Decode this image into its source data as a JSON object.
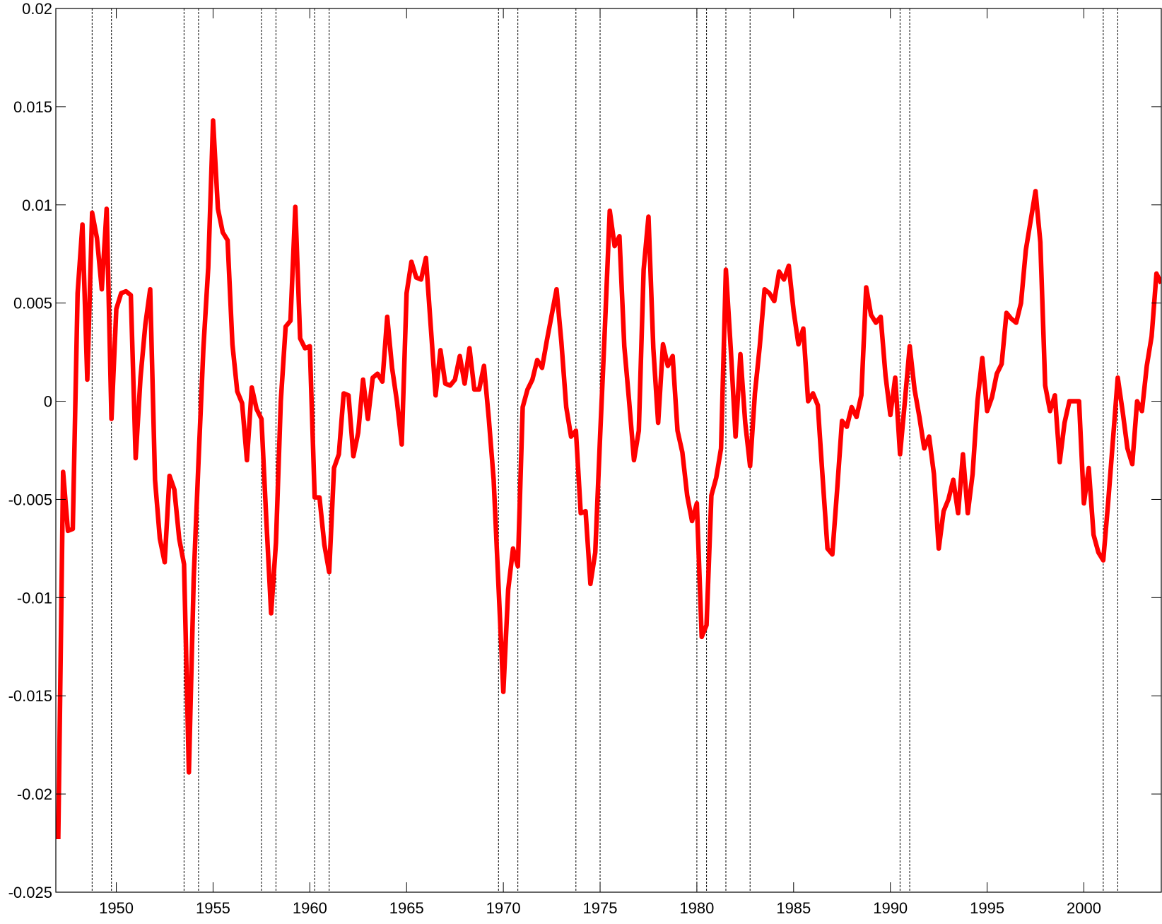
{
  "chart_data": {
    "type": "line",
    "color": "#ff0000",
    "xlim": [
      1946.875,
      2004
    ],
    "ylim": [
      -0.025,
      0.02
    ],
    "xticks": [
      1950,
      1955,
      1960,
      1965,
      1970,
      1975,
      1980,
      1985,
      1990,
      1995,
      2000
    ],
    "yticks": [
      -0.025,
      -0.02,
      -0.015,
      -0.01,
      -0.005,
      0,
      0.005,
      0.01,
      0.015,
      0.02
    ],
    "vlines": [
      1948.75,
      1949.75,
      1953.5,
      1954.25,
      1957.5,
      1958.25,
      1960.25,
      1961,
      1969.75,
      1970.75,
      1973.75,
      1975,
      1980,
      1980.5,
      1981.5,
      1982.75,
      1990.5,
      1991,
      2001,
      2001.75
    ],
    "x": [
      1947,
      1947.25,
      1947.5,
      1947.75,
      1948,
      1948.25,
      1948.5,
      1948.75,
      1949,
      1949.25,
      1949.5,
      1949.75,
      1950,
      1950.25,
      1950.5,
      1950.75,
      1951,
      1951.25,
      1951.5,
      1951.75,
      1952,
      1952.25,
      1952.5,
      1952.75,
      1953,
      1953.25,
      1953.5,
      1953.75,
      1954,
      1954.25,
      1954.5,
      1954.75,
      1955,
      1955.25,
      1955.5,
      1955.75,
      1956,
      1956.25,
      1956.5,
      1956.75,
      1957,
      1957.25,
      1957.5,
      1957.75,
      1958,
      1958.25,
      1958.5,
      1958.75,
      1959,
      1959.25,
      1959.5,
      1959.75,
      1960,
      1960.25,
      1960.5,
      1960.75,
      1961,
      1961.25,
      1961.5,
      1961.75,
      1962,
      1962.25,
      1962.5,
      1962.75,
      1963,
      1963.25,
      1963.5,
      1963.75,
      1964,
      1964.25,
      1964.5,
      1964.75,
      1965,
      1965.25,
      1965.5,
      1965.75,
      1966,
      1966.25,
      1966.5,
      1966.75,
      1967,
      1967.25,
      1967.5,
      1967.75,
      1968,
      1968.25,
      1968.5,
      1968.75,
      1969,
      1969.25,
      1969.5,
      1969.75,
      1970,
      1970.25,
      1970.5,
      1970.75,
      1971,
      1971.25,
      1971.5,
      1971.75,
      1972,
      1972.25,
      1972.5,
      1972.75,
      1973,
      1973.25,
      1973.5,
      1973.75,
      1974,
      1974.25,
      1974.5,
      1974.75,
      1975,
      1975.25,
      1975.5,
      1975.75,
      1976,
      1976.25,
      1976.5,
      1976.75,
      1977,
      1977.25,
      1977.5,
      1977.75,
      1978,
      1978.25,
      1978.5,
      1978.75,
      1979,
      1979.25,
      1979.5,
      1979.75,
      1980,
      1980.25,
      1980.5,
      1980.75,
      1981,
      1981.25,
      1981.5,
      1981.75,
      1982,
      1982.25,
      1982.5,
      1982.75,
      1983,
      1983.25,
      1983.5,
      1983.75,
      1984,
      1984.25,
      1984.5,
      1984.75,
      1985,
      1985.25,
      1985.5,
      1985.75,
      1986,
      1986.25,
      1986.5,
      1986.75,
      1987,
      1987.25,
      1987.5,
      1987.75,
      1988,
      1988.25,
      1988.5,
      1988.75,
      1989,
      1989.25,
      1989.5,
      1989.75,
      1990,
      1990.25,
      1990.5,
      1990.75,
      1991,
      1991.25,
      1991.5,
      1991.75,
      1992,
      1992.25,
      1992.5,
      1992.75,
      1993,
      1993.25,
      1993.5,
      1993.75,
      1994,
      1994.25,
      1994.5,
      1994.75,
      1995,
      1995.25,
      1995.5,
      1995.75,
      1996,
      1996.25,
      1996.5,
      1996.75,
      1997,
      1997.25,
      1997.5,
      1997.75,
      1998,
      1998.25,
      1998.5,
      1998.75,
      1999,
      1999.25,
      1999.5,
      1999.75,
      2000,
      2000.25,
      2000.5,
      2000.75,
      2001,
      2001.25,
      2001.5,
      2001.75,
      2002,
      2002.25,
      2002.5,
      2002.75,
      2003,
      2003.25,
      2003.5,
      2003.75,
      2004
    ],
    "values": [
      -0.0223,
      -0.0036,
      -0.0066,
      -0.0065,
      0.0055,
      0.009,
      0.0011,
      0.0096,
      0.0083,
      0.0057,
      0.0098,
      -0.0009,
      0.0047,
      0.0055,
      0.0056,
      0.0054,
      -0.0029,
      0.0012,
      0.0039,
      0.0057,
      -0.004,
      -0.007,
      -0.0082,
      -0.0038,
      -0.0045,
      -0.007,
      -0.0083,
      -0.0189,
      -0.009,
      -0.003,
      0.0027,
      0.0068,
      0.0143,
      0.0098,
      0.0086,
      0.0082,
      0.0029,
      0.0005,
      -0.0001,
      -0.003,
      0.0007,
      -0.0004,
      -0.0009,
      -0.006,
      -0.0108,
      -0.0072,
      0,
      0.0038,
      0.0041,
      0.0099,
      0.0032,
      0.0027,
      0.0028,
      -0.0049,
      -0.0049,
      -0.0073,
      -0.0087,
      -0.0034,
      -0.0027,
      0.0004,
      0.0003,
      -0.0028,
      -0.0016,
      0.0011,
      -0.0009,
      0.0012,
      0.0014,
      0.001,
      0.0043,
      0.0017,
      0,
      -0.0022,
      0.0055,
      0.0071,
      0.0063,
      0.0062,
      0.0073,
      0.0038,
      0.0003,
      0.0026,
      0.0009,
      0.0008,
      0.0011,
      0.0023,
      0.0009,
      0.0027,
      0.0006,
      0.0006,
      0.0018,
      -0.0009,
      -0.004,
      -0.0094,
      -0.0148,
      -0.0096,
      -0.0075,
      -0.0084,
      -0.0003,
      0.0006,
      0.0011,
      0.0021,
      0.0017,
      0.0031,
      0.0044,
      0.0057,
      0.003,
      -0.0003,
      -0.0018,
      -0.0015,
      -0.0057,
      -0.0056,
      -0.0093,
      -0.0077,
      -0.0018,
      0.0038,
      0.0097,
      0.0079,
      0.0084,
      0.0028,
      0,
      -0.003,
      -0.0015,
      0.0067,
      0.0094,
      0.0027,
      -0.0011,
      0.0029,
      0.0018,
      0.0023,
      -0.0015,
      -0.0026,
      -0.0048,
      -0.0061,
      -0.0052,
      -0.012,
      -0.0114,
      -0.0048,
      -0.0039,
      -0.0024,
      0.0067,
      0.0027,
      -0.0018,
      0.0024,
      -0.0011,
      -0.0033,
      0.0004,
      0.0028,
      0.0057,
      0.0055,
      0.0051,
      0.0066,
      0.0062,
      0.0069,
      0.0046,
      0.0029,
      0.0037,
      0,
      0.0004,
      -0.0002,
      -0.0039,
      -0.0075,
      -0.0078,
      -0.0045,
      -0.001,
      -0.0013,
      -0.0003,
      -0.0008,
      0.0003,
      0.0058,
      0.0044,
      0.004,
      0.0043,
      0.0013,
      -0.0007,
      0.0012,
      -0.0027,
      0,
      0.0028,
      0.0006,
      -0.0008,
      -0.0024,
      -0.0018,
      -0.0037,
      -0.0075,
      -0.0056,
      -0.005,
      -0.004,
      -0.0057,
      -0.0027,
      -0.0057,
      -0.0037,
      0,
      0.0022,
      -0.0005,
      0.0002,
      0.0014,
      0.0019,
      0.0045,
      0.0042,
      0.004,
      0.005,
      0.0077,
      0.0092,
      0.0107,
      0.0081,
      0.0008,
      -0.0005,
      0.0003,
      -0.0031,
      -0.0011,
      0,
      0,
      0,
      -0.0052,
      -0.0034,
      -0.0068,
      -0.0077,
      -0.0081,
      -0.0052,
      -0.002,
      0.0012,
      -0.0005,
      -0.0024,
      -0.0032,
      0,
      -0.0005,
      0.0018,
      0.0033,
      0.0065,
      0.006
    ]
  }
}
